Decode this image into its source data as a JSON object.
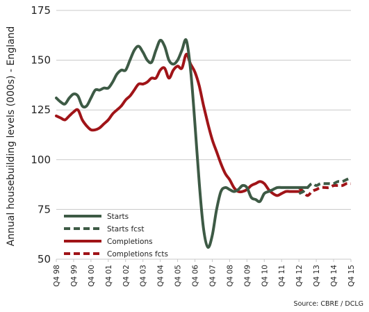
{
  "chart_data": {
    "type": "line",
    "ylabel": "Annual housebuilding levels (000s) - England",
    "xlabel": "",
    "ylim": [
      50,
      175
    ],
    "yticks": [
      50,
      75,
      100,
      125,
      150,
      175
    ],
    "grid": "horizontal",
    "legend_position": "bottom-left",
    "source": "Source: CBRE / DCLG",
    "xticks": [
      {
        "label": "Q4 98",
        "t": 0
      },
      {
        "label": "Q4 99",
        "t": 4
      },
      {
        "label": "Q4 00",
        "t": 8
      },
      {
        "label": "Q4 01",
        "t": 12
      },
      {
        "label": "Q4 02",
        "t": 16
      },
      {
        "label": "Q4 03",
        "t": 20
      },
      {
        "label": "Q4 04",
        "t": 24
      },
      {
        "label": "Q4 05",
        "t": 28
      },
      {
        "label": "Q4 06",
        "t": 32
      },
      {
        "label": "Q4 07",
        "t": 36
      },
      {
        "label": "Q4 08",
        "t": 40
      },
      {
        "label": "Q4 09",
        "t": 44
      },
      {
        "label": "Q4 10",
        "t": 48
      },
      {
        "label": "Q4 11",
        "t": 52
      },
      {
        "label": "Q4 12",
        "t": 56
      },
      {
        "label": "Q4 13",
        "t": 60
      },
      {
        "label": "Q4 14",
        "t": 64
      },
      {
        "label": "Q4 15",
        "t": 68
      }
    ],
    "series": [
      {
        "name": "Starts",
        "color": "#3d5a45",
        "dash": false,
        "t": [
          0,
          1,
          2,
          3,
          4,
          5,
          6,
          7,
          8,
          9,
          10,
          11,
          12,
          13,
          14,
          15,
          16,
          17,
          18,
          19,
          20,
          21,
          22,
          23,
          24,
          25,
          26,
          27,
          28,
          29,
          30,
          31,
          32,
          33,
          34,
          35,
          36,
          37,
          38,
          39,
          40,
          41,
          42,
          43,
          44,
          45,
          46,
          47,
          48,
          49,
          50,
          51,
          52,
          53,
          54,
          55,
          56,
          57,
          58
        ],
        "values": [
          131,
          129,
          128,
          131,
          133,
          132,
          127,
          127,
          131,
          135,
          135,
          136,
          136,
          139,
          143,
          145,
          145,
          150,
          155,
          157,
          154,
          150,
          149,
          155,
          160,
          157,
          150,
          148,
          150,
          155,
          160,
          145,
          118,
          88,
          65,
          56,
          62,
          75,
          84,
          86,
          85,
          84,
          85,
          87,
          86,
          81,
          80,
          79,
          83,
          84,
          85,
          86,
          86,
          86,
          86,
          86,
          86,
          86,
          86
        ]
      },
      {
        "name": "Starts fcst",
        "color": "#3d5a45",
        "dash": true,
        "t": [
          56,
          57,
          58,
          59,
          60,
          61,
          62,
          63,
          64,
          65,
          66,
          67,
          68
        ],
        "values": [
          83,
          84,
          86,
          88,
          87,
          88,
          88,
          88,
          88,
          89,
          89,
          90,
          91
        ]
      },
      {
        "name": "Completions",
        "color": "#a01418",
        "dash": false,
        "t": [
          0,
          1,
          2,
          3,
          4,
          5,
          6,
          7,
          8,
          9,
          10,
          11,
          12,
          13,
          14,
          15,
          16,
          17,
          18,
          19,
          20,
          21,
          22,
          23,
          24,
          25,
          26,
          27,
          28,
          29,
          30,
          31,
          32,
          33,
          34,
          35,
          36,
          37,
          38,
          39,
          40,
          41,
          42,
          43,
          44,
          45,
          46,
          47,
          48,
          49,
          50,
          51,
          52,
          53,
          54,
          55,
          56,
          57
        ],
        "values": [
          122,
          121,
          120,
          122,
          124,
          125,
          120,
          117,
          115,
          115,
          116,
          118,
          120,
          123,
          125,
          127,
          130,
          132,
          135,
          138,
          138,
          139,
          141,
          141,
          145,
          146,
          141,
          145,
          147,
          146,
          153,
          148,
          144,
          137,
          127,
          118,
          110,
          104,
          98,
          93,
          90,
          86,
          84,
          84,
          85,
          87,
          88,
          89,
          88,
          85,
          83,
          82,
          83,
          84,
          84,
          84,
          84,
          84
        ]
      },
      {
        "name": "Completions fcts",
        "color": "#a01418",
        "dash": true,
        "t": [
          56,
          57,
          58,
          59,
          60,
          61,
          62,
          63,
          64,
          65,
          66,
          67,
          68
        ],
        "values": [
          86,
          84,
          82,
          84,
          85,
          86,
          86,
          86,
          87,
          87,
          87,
          88,
          88
        ]
      }
    ],
    "legend": [
      {
        "label": "Starts",
        "color": "#3d5a45",
        "dash": false
      },
      {
        "label": "Starts fcst",
        "color": "#3d5a45",
        "dash": true
      },
      {
        "label": "Completions",
        "color": "#a01418",
        "dash": false
      },
      {
        "label": "Completions fcts",
        "color": "#a01418",
        "dash": true
      }
    ]
  }
}
